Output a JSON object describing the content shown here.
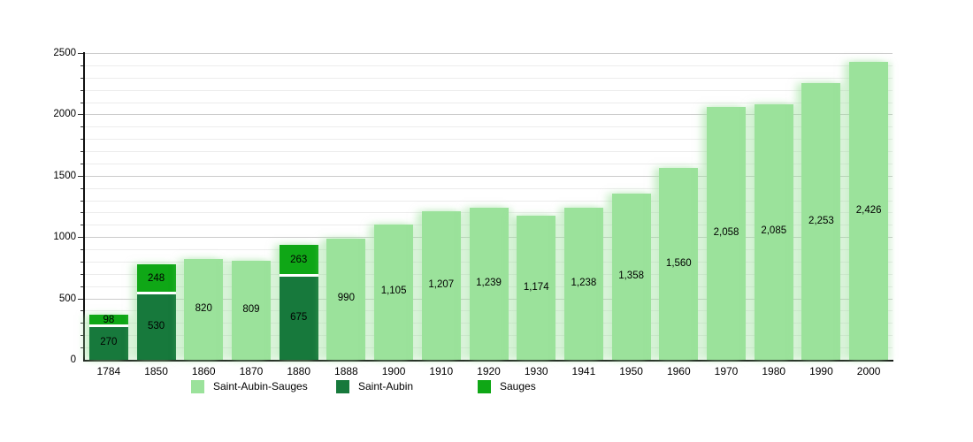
{
  "chart_data": {
    "type": "bar",
    "stacked": true,
    "title": "",
    "xlabel": "",
    "ylabel": "",
    "ylim": [
      0,
      2500
    ],
    "ytick_major": 500,
    "ytick_minor": 100,
    "y_major_labels": [
      "0",
      "500",
      "1000",
      "1500",
      "2000",
      "2500"
    ],
    "grid": true,
    "legend_position": "bottom",
    "legend": [
      {
        "label": "Saint-Aubin-Sauges",
        "color": "#9BE29B"
      },
      {
        "label": "Saint-Aubin",
        "color": "#17793C"
      },
      {
        "label": "Sauges",
        "color": "#0FA716"
      }
    ],
    "series_colors": {
      "Saint-Aubin-Sauges": "#9BE29B",
      "Saint-Aubin": "#17793C",
      "Sauges": "#0FA716"
    },
    "categories": [
      "1784",
      "1850",
      "1860",
      "1870",
      "1880",
      "1888",
      "1900",
      "1910",
      "1920",
      "1930",
      "1941",
      "1950",
      "1960",
      "1970",
      "1980",
      "1990",
      "2000"
    ],
    "bars": [
      {
        "year": "1784",
        "segments": [
          {
            "series": "Saint-Aubin",
            "value": 270,
            "label": "270"
          },
          {
            "series": "Sauges",
            "value": 98,
            "label": "98"
          }
        ]
      },
      {
        "year": "1850",
        "segments": [
          {
            "series": "Saint-Aubin",
            "value": 530,
            "label": "530"
          },
          {
            "series": "Sauges",
            "value": 248,
            "label": "248"
          }
        ]
      },
      {
        "year": "1860",
        "segments": [
          {
            "series": "Saint-Aubin-Sauges",
            "value": 820,
            "label": "820"
          }
        ]
      },
      {
        "year": "1870",
        "segments": [
          {
            "series": "Saint-Aubin-Sauges",
            "value": 809,
            "label": "809"
          }
        ]
      },
      {
        "year": "1880",
        "segments": [
          {
            "series": "Saint-Aubin",
            "value": 675,
            "label": "675"
          },
          {
            "series": "Sauges",
            "value": 263,
            "label": "263"
          }
        ]
      },
      {
        "year": "1888",
        "segments": [
          {
            "series": "Saint-Aubin-Sauges",
            "value": 990,
            "label": "990"
          }
        ]
      },
      {
        "year": "1900",
        "segments": [
          {
            "series": "Saint-Aubin-Sauges",
            "value": 1105,
            "label": "1,105"
          }
        ]
      },
      {
        "year": "1910",
        "segments": [
          {
            "series": "Saint-Aubin-Sauges",
            "value": 1207,
            "label": "1,207"
          }
        ]
      },
      {
        "year": "1920",
        "segments": [
          {
            "series": "Saint-Aubin-Sauges",
            "value": 1239,
            "label": "1,239"
          }
        ]
      },
      {
        "year": "1930",
        "segments": [
          {
            "series": "Saint-Aubin-Sauges",
            "value": 1174,
            "label": "1,174"
          }
        ]
      },
      {
        "year": "1941",
        "segments": [
          {
            "series": "Saint-Aubin-Sauges",
            "value": 1238,
            "label": "1,238"
          }
        ]
      },
      {
        "year": "1950",
        "segments": [
          {
            "series": "Saint-Aubin-Sauges",
            "value": 1358,
            "label": "1,358"
          }
        ]
      },
      {
        "year": "1960",
        "segments": [
          {
            "series": "Saint-Aubin-Sauges",
            "value": 1560,
            "label": "1,560"
          }
        ]
      },
      {
        "year": "1970",
        "segments": [
          {
            "series": "Saint-Aubin-Sauges",
            "value": 2058,
            "label": "2,058"
          }
        ]
      },
      {
        "year": "1980",
        "segments": [
          {
            "series": "Saint-Aubin-Sauges",
            "value": 2085,
            "label": "2,085"
          }
        ]
      },
      {
        "year": "1990",
        "segments": [
          {
            "series": "Saint-Aubin-Sauges",
            "value": 2253,
            "label": "2,253"
          }
        ]
      },
      {
        "year": "2000",
        "segments": [
          {
            "series": "Saint-Aubin-Sauges",
            "value": 2426,
            "label": "2,426"
          }
        ]
      }
    ],
    "colors": {
      "background": "#ffffff",
      "axis": "#111111",
      "grid_major": "#cccccc",
      "grid_minor": "#ececec",
      "text": "#000000",
      "segment_separator": "#ffffff"
    }
  }
}
